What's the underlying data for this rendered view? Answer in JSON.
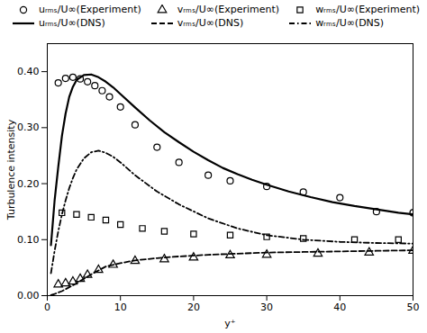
{
  "chart_data": {
    "type": "line",
    "title": "",
    "xlabel": "y⁺",
    "ylabel": "Turbulence intensity",
    "xlim": [
      0,
      50
    ],
    "ylim": [
      0,
      0.45
    ],
    "xticks": [
      0,
      10,
      20,
      30,
      40,
      50
    ],
    "yticks": [
      0,
      0.1,
      0.2,
      0.3,
      0.4
    ],
    "grid": false,
    "legend": "upper right",
    "series": [
      {
        "name": "uᵣₘₛ/U∞(Experiment)",
        "type": "scatter",
        "marker": "circle",
        "color": "#000000",
        "x": [
          1.5,
          2.5,
          3.5,
          4.5,
          5.5,
          6.5,
          7.5,
          8.5,
          10,
          12,
          15,
          18,
          22,
          25,
          30,
          35,
          40,
          45,
          50
        ],
        "values": [
          0.38,
          0.388,
          0.39,
          0.387,
          0.382,
          0.375,
          0.366,
          0.355,
          0.337,
          0.305,
          0.265,
          0.238,
          0.215,
          0.205,
          0.195,
          0.185,
          0.175,
          0.15,
          0.148
        ]
      },
      {
        "name": "vᵣₘₛ/U∞(Experiment)",
        "type": "scatter",
        "marker": "triangle",
        "color": "#000000",
        "x": [
          1.5,
          2.5,
          3.5,
          4.5,
          5.5,
          7,
          9,
          12,
          16,
          20,
          25,
          30,
          37,
          44,
          50
        ],
        "values": [
          0.02,
          0.022,
          0.025,
          0.03,
          0.037,
          0.046,
          0.055,
          0.062,
          0.065,
          0.068,
          0.072,
          0.073,
          0.075,
          0.077,
          0.08
        ]
      },
      {
        "name": "wᵣₘₛ/U∞(Experiment)",
        "type": "scatter",
        "marker": "square",
        "color": "#000000",
        "x": [
          2,
          4,
          6,
          8,
          10,
          13,
          16,
          20,
          25,
          30,
          35,
          42,
          48
        ],
        "values": [
          0.148,
          0.145,
          0.14,
          0.135,
          0.127,
          0.12,
          0.115,
          0.11,
          0.108,
          0.105,
          0.102,
          0.1,
          0.1
        ]
      },
      {
        "name": "uᵣₘₛ/U∞(DNS)",
        "type": "line",
        "line_style": "solid",
        "color": "#000000",
        "x": [
          0.5,
          1,
          1.5,
          2,
          2.5,
          3,
          3.5,
          4,
          5,
          6,
          7,
          8,
          9,
          10,
          12,
          14,
          16,
          18,
          20,
          22,
          24,
          26,
          28,
          30,
          33,
          36,
          39,
          42,
          45,
          48,
          50
        ],
        "values": [
          0.09,
          0.17,
          0.23,
          0.285,
          0.325,
          0.355,
          0.373,
          0.385,
          0.394,
          0.395,
          0.39,
          0.382,
          0.372,
          0.36,
          0.336,
          0.313,
          0.292,
          0.274,
          0.257,
          0.242,
          0.228,
          0.217,
          0.207,
          0.198,
          0.186,
          0.176,
          0.167,
          0.16,
          0.154,
          0.148,
          0.145
        ]
      },
      {
        "name": "vᵣₘₛ/U∞(DNS)",
        "type": "line",
        "line_style": "dashed",
        "color": "#000000",
        "x": [
          0.5,
          1,
          2,
          3,
          4,
          5,
          6,
          7,
          8,
          10,
          12,
          15,
          18,
          22,
          26,
          30,
          35,
          40,
          45,
          50
        ],
        "values": [
          0.001,
          0.003,
          0.008,
          0.015,
          0.022,
          0.03,
          0.038,
          0.045,
          0.052,
          0.058,
          0.063,
          0.067,
          0.07,
          0.073,
          0.075,
          0.077,
          0.078,
          0.079,
          0.08,
          0.081
        ]
      },
      {
        "name": "wᵣₘₛ/U∞(DNS)",
        "type": "line",
        "line_style": "dashdot",
        "color": "#000000",
        "x": [
          0.5,
          1,
          1.5,
          2,
          2.5,
          3,
          3.5,
          4,
          5,
          6,
          7,
          8,
          9,
          10,
          12,
          15,
          18,
          22,
          26,
          30,
          35,
          40,
          45,
          50
        ],
        "values": [
          0.04,
          0.08,
          0.115,
          0.145,
          0.17,
          0.192,
          0.21,
          0.225,
          0.245,
          0.256,
          0.259,
          0.255,
          0.248,
          0.238,
          0.215,
          0.186,
          0.163,
          0.138,
          0.12,
          0.108,
          0.1,
          0.096,
          0.094,
          0.093
        ]
      }
    ]
  }
}
